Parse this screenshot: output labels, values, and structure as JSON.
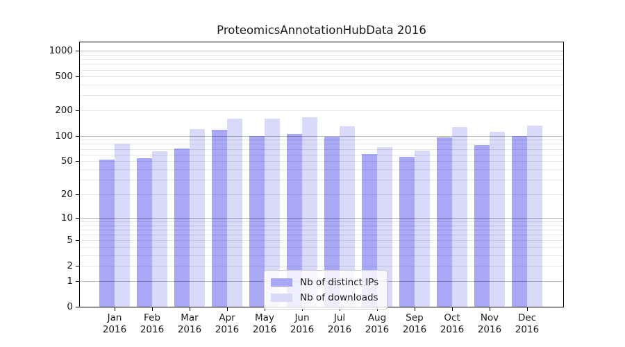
{
  "chart_data": {
    "type": "bar",
    "title": "ProteomicsAnnotationHubData 2016",
    "y_scale": "log1p",
    "ylim_top": 1260,
    "categories": [
      "Jan 2016",
      "Feb 2016",
      "Mar 2016",
      "Apr 2016",
      "May 2016",
      "Jun 2016",
      "Jul 2016",
      "Aug 2016",
      "Sep 2016",
      "Oct 2016",
      "Nov 2016",
      "Dec 2016"
    ],
    "x_tick_months": [
      "Jan",
      "Feb",
      "Mar",
      "Apr",
      "May",
      "Jun",
      "Jul",
      "Aug",
      "Sep",
      "Oct",
      "Nov",
      "Dec"
    ],
    "x_tick_year": "2016",
    "series": [
      {
        "name": "Nb of distinct IPs",
        "color": "#a8a8f6",
        "values": [
          52,
          54,
          71,
          119,
          100,
          105,
          97,
          61,
          56,
          95,
          78,
          100
        ]
      },
      {
        "name": "Nb of downloads",
        "color": "#d9d9f9",
        "values": [
          80,
          65,
          121,
          161,
          159,
          167,
          129,
          74,
          67,
          128,
          111,
          131
        ]
      }
    ],
    "y_ticks": [
      0,
      1,
      2,
      5,
      10,
      20,
      50,
      100,
      200,
      500,
      1000
    ],
    "y_major_gridlines": [
      1,
      10,
      100,
      1000
    ],
    "y_minor_gridlines": [
      2,
      3,
      4,
      5,
      6,
      7,
      8,
      9,
      20,
      30,
      40,
      50,
      60,
      70,
      80,
      90,
      200,
      300,
      400,
      500,
      600,
      700,
      800,
      900
    ],
    "legend": {
      "position": "lower center",
      "entries": [
        "Nb of distinct IPs",
        "Nb of downloads"
      ]
    },
    "colors": {
      "major_grid": "rgba(0,0,0,0.28)",
      "minor_grid": "rgba(0,0,0,0.10)",
      "axis_frame": "#000000",
      "text": "#1a1a1a",
      "legend_bg": "rgba(255,255,255,0.8)",
      "legend_border": "#cccccc"
    }
  }
}
